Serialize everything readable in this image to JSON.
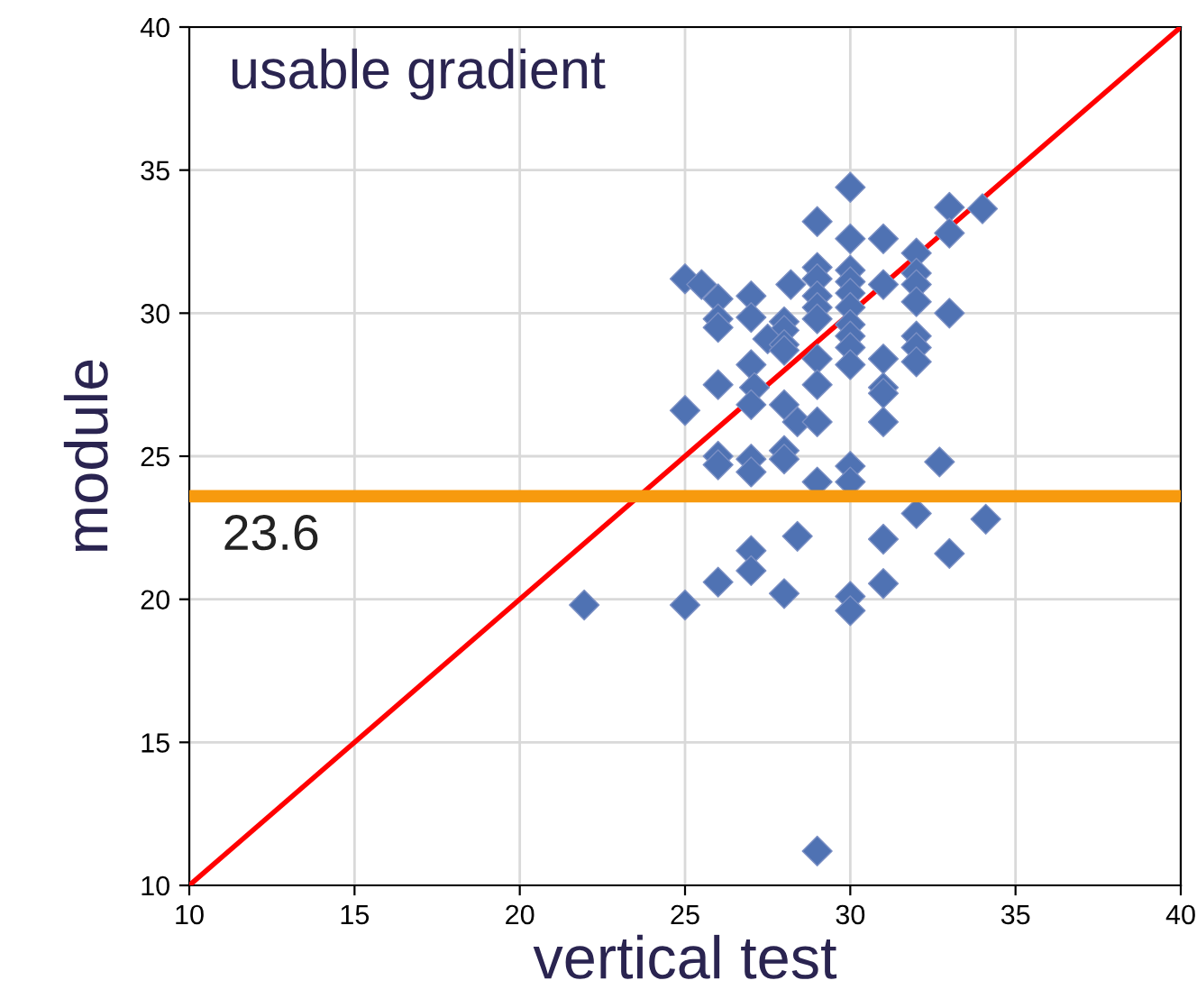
{
  "chart_data": {
    "type": "scatter",
    "xlabel": "vertical test",
    "ylabel": "module",
    "xlim": [
      10,
      40
    ],
    "ylim": [
      10,
      40
    ],
    "xticks": [
      10,
      15,
      20,
      25,
      30,
      35,
      40
    ],
    "yticks": [
      10,
      15,
      20,
      25,
      30,
      35,
      40
    ],
    "grid": true,
    "marker": "diamond",
    "annotations": [
      "usable gradient"
    ],
    "ref_lines": [
      {
        "axis": "y",
        "value": 23.6,
        "label": "23.6",
        "color": "#f79a0e"
      }
    ],
    "series": [
      {
        "color": "#4f72b3",
        "x": [
          30,
          29,
          33,
          34,
          33,
          30,
          31,
          32,
          25,
          25.5,
          26,
          27,
          28.2,
          29,
          29,
          29,
          29,
          29,
          30,
          30,
          30,
          30,
          31,
          32,
          32,
          32,
          33,
          26,
          26,
          27,
          28,
          28,
          27.5,
          28,
          28,
          30,
          30,
          30,
          30,
          29,
          32,
          32,
          32,
          31,
          27,
          26,
          27.1,
          29,
          31,
          31,
          25,
          27,
          28,
          28.4,
          29,
          31,
          26,
          26,
          27,
          27,
          28,
          28,
          29,
          30,
          30,
          32.7,
          32,
          34.1,
          28.4,
          31,
          33,
          27,
          27,
          26,
          31,
          28,
          30,
          30,
          21.95,
          25,
          29
        ],
        "values": [
          34.4,
          33.2,
          33.7,
          33.65,
          32.8,
          32.6,
          32.6,
          32.1,
          31.2,
          31.0,
          30.5,
          30.6,
          31.0,
          31.6,
          31.2,
          30.6,
          30.2,
          29.8,
          31.5,
          31.1,
          30.7,
          30.2,
          31.0,
          31.4,
          31.0,
          30.4,
          30.0,
          29.8,
          29.5,
          29.85,
          29.7,
          29.4,
          29.1,
          28.9,
          28.7,
          29.6,
          29.2,
          28.8,
          28.2,
          28.4,
          29.2,
          28.8,
          28.3,
          28.4,
          28.2,
          27.5,
          27.4,
          27.5,
          27.4,
          27.2,
          26.6,
          26.8,
          26.8,
          26.2,
          26.2,
          26.2,
          25.0,
          24.7,
          24.9,
          24.45,
          25.2,
          24.9,
          24.1,
          24.65,
          24.1,
          24.8,
          23.0,
          22.8,
          22.2,
          22.1,
          21.6,
          21.7,
          21.0,
          20.6,
          20.55,
          20.2,
          20.1,
          19.6,
          19.8,
          19.8,
          11.2
        ]
      },
      {
        "type": "line",
        "color": "#ff0000",
        "x": [
          10,
          40
        ],
        "values": [
          10,
          40
        ],
        "marker": "none"
      }
    ]
  }
}
